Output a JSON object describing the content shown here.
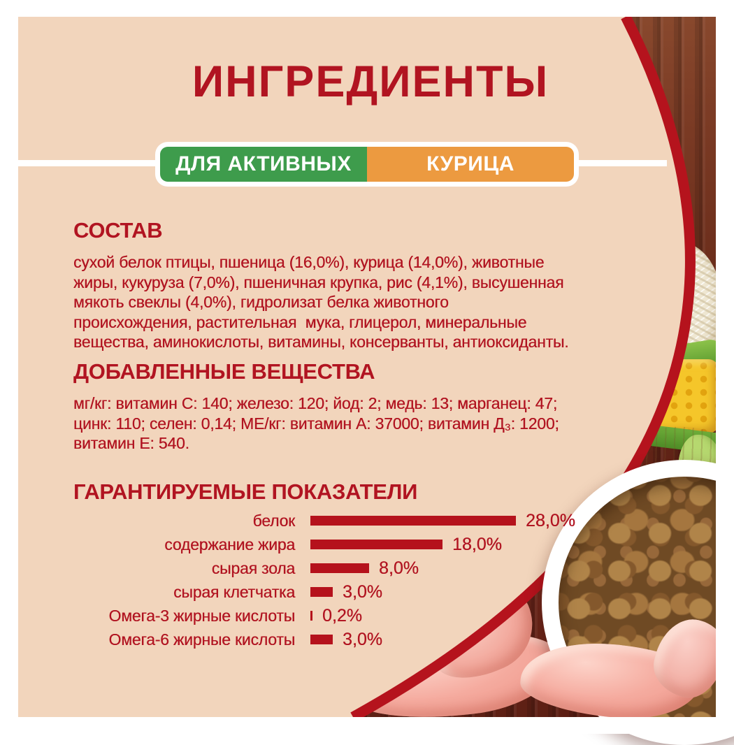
{
  "palette": {
    "panel_bg": "#F2D5BC",
    "text_red": "#B11421",
    "bar_red": "#B5121C",
    "arc_red": "#B5131D",
    "badge_green": "#3E9C4C",
    "badge_orange": "#EC9A40",
    "frame_white": "#FFFFFF"
  },
  "header": {
    "title": "ИНГРЕДИЕНТЫ"
  },
  "badges": {
    "left": {
      "label": "ДЛЯ АКТИВНЫХ",
      "color": "#3E9C4C"
    },
    "right": {
      "label": "КУРИЦА",
      "color": "#EC9A40"
    }
  },
  "sections": {
    "composition": {
      "heading": "СОСТАВ",
      "body": "сухой белок птицы, пшеница (16,0%), курица (14,0%), животные\nжиры, кукуруза (7,0%), пшеничная крупка, рис (4,1%), высушенная\nмякоть свеклы (4,0%), гидролизат белка животного\nпроисхождения, растительная  мука, глицерол, минеральные\nвещества, аминокислоты, витамины, консерванты, антиоксиданты."
    },
    "additives": {
      "heading": "ДОБАВЛЕННЫЕ ВЕЩЕСТВА",
      "body": "мг/кг: витамин С: 140; железо: 120; йод: 2; медь: 13; марганец: 47;\nцинк: 110; селен: 0,14; МЕ/кг: витамин А: 37000; витамин Д₃: 1200;\nвитамин Е: 540."
    },
    "guaranteed": {
      "heading": "ГАРАНТИРУЕМЫЕ ПОКАЗАТЕЛИ"
    }
  },
  "chart_data": {
    "type": "bar",
    "orientation": "horizontal",
    "title": "ГАРАНТИРУЕМЫЕ ПОКАЗАТЕЛИ",
    "categories": [
      "белок",
      "содержание жира",
      "сырая зола",
      "сырая клетчатка",
      "Омега-3 жирные кислоты",
      "Омега-6 жирные кислоты"
    ],
    "values": [
      28.0,
      18.0,
      8.0,
      3.0,
      0.2,
      3.0
    ],
    "value_labels": [
      "28,0%",
      "18,0%",
      "8,0%",
      "3,0%",
      "0,2%",
      "3,0%"
    ],
    "unit": "%",
    "xlim": [
      0,
      30
    ],
    "grid": false,
    "legend": false,
    "bar_color": "#B5121C"
  }
}
